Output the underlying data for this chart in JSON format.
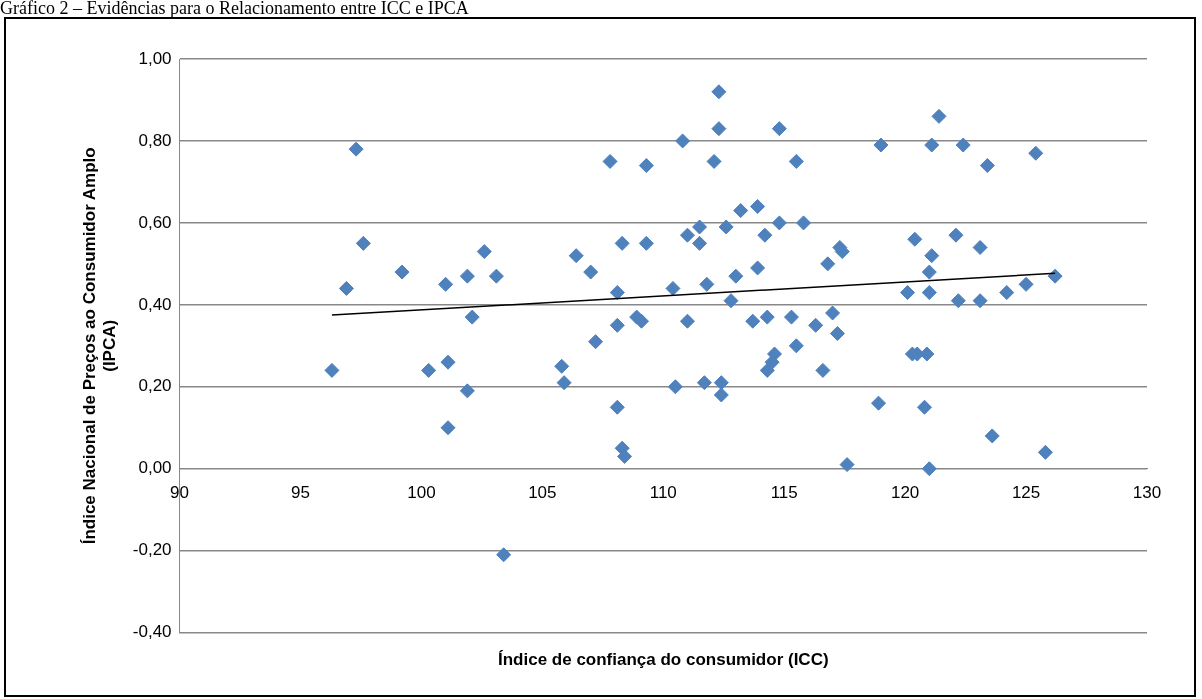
{
  "chart_data": {
    "type": "scatter",
    "title": "Gráfico 2 – Evidências para o Relacionamento entre ICC e IPCA",
    "xlabel": "Índice de confiança do consumidor (ICC)",
    "ylabel": "Índice Nacional de Preços ao Consumidor Amplo (IPCA)",
    "xlim": [
      90,
      130
    ],
    "xticks": [
      90,
      95,
      100,
      105,
      110,
      115,
      120,
      125,
      130
    ],
    "ylim": [
      -0.4,
      1.0
    ],
    "yticks": [
      {
        "value": -0.4,
        "label": "-0,40"
      },
      {
        "value": -0.2,
        "label": "-0,20"
      },
      {
        "value": 0,
        "label": "0,00"
      },
      {
        "value": 0.2,
        "label": "0,20"
      },
      {
        "value": 0.4,
        "label": "0,40"
      },
      {
        "value": 0.6,
        "label": "0,60"
      },
      {
        "value": 0.8,
        "label": "0,80"
      },
      {
        "value": 1.0,
        "label": "1,00"
      }
    ],
    "grid": "y",
    "legend": false,
    "marker": "diamond",
    "series": [
      {
        "color": "#4f81bd",
        "x": [
          96.3,
          96.9,
          97.3,
          97.6,
          99.2,
          100.3,
          101.0,
          101.1,
          101.1,
          101.9,
          101.9,
          102.1,
          102.6,
          103.1,
          103.4,
          105.8,
          105.9,
          106.4,
          107.0,
          107.2,
          107.8,
          108.1,
          108.1,
          108.1,
          108.3,
          108.3,
          108.4,
          108.9,
          109.1,
          109.3,
          109.3,
          110.4,
          110.5,
          110.8,
          111.0,
          111.0,
          111.5,
          111.5,
          111.7,
          111.8,
          112.1,
          112.3,
          112.3,
          112.4,
          112.4,
          112.6,
          112.8,
          113.0,
          113.2,
          113.7,
          113.9,
          113.9,
          114.2,
          114.3,
          114.3,
          114.5,
          114.6,
          114.8,
          114.8,
          115.3,
          115.5,
          115.5,
          115.8,
          116.3,
          116.6,
          116.8,
          117.0,
          117.2,
          117.3,
          117.4,
          117.6,
          119.0,
          118.9,
          120.1,
          120.4,
          120.3,
          120.5,
          120.9,
          120.8,
          121.0,
          121.1,
          121.0,
          121.1,
          121.0,
          121.4,
          122.1,
          122.2,
          122.4,
          123.1,
          123.1,
          123.4,
          123.6,
          124.2,
          125.0,
          125.4,
          125.8,
          126.2
        ],
        "values": [
          0.24,
          0.44,
          0.78,
          0.55,
          0.48,
          0.24,
          0.45,
          0.26,
          0.1,
          0.47,
          0.19,
          0.37,
          0.53,
          0.47,
          -0.21,
          0.25,
          0.21,
          0.52,
          0.48,
          0.31,
          0.75,
          0.43,
          0.35,
          0.15,
          0.05,
          0.55,
          0.03,
          0.37,
          0.36,
          0.74,
          0.55,
          0.44,
          0.2,
          0.8,
          0.36,
          0.57,
          0.55,
          0.59,
          0.21,
          0.45,
          0.75,
          0.92,
          0.83,
          0.21,
          0.18,
          0.59,
          0.41,
          0.47,
          0.63,
          0.36,
          0.64,
          0.49,
          0.57,
          0.37,
          0.24,
          0.26,
          0.28,
          0.83,
          0.6,
          0.37,
          0.75,
          0.3,
          0.6,
          0.35,
          0.24,
          0.5,
          0.38,
          0.33,
          0.54,
          0.53,
          0.01,
          0.79,
          0.16,
          0.43,
          0.56,
          0.28,
          0.28,
          0.28,
          0.15,
          0.48,
          0.52,
          0.43,
          0.79,
          0.0,
          0.86,
          0.57,
          0.41,
          0.79,
          0.54,
          0.41,
          0.74,
          0.08,
          0.43,
          0.45,
          0.77,
          0.04,
          0.47
        ]
      },
      {
        "type": "line",
        "color": "#000000",
        "marker": "none",
        "x": [
          96.3,
          126.2
        ],
        "values": [
          0.375,
          0.477
        ]
      }
    ]
  }
}
